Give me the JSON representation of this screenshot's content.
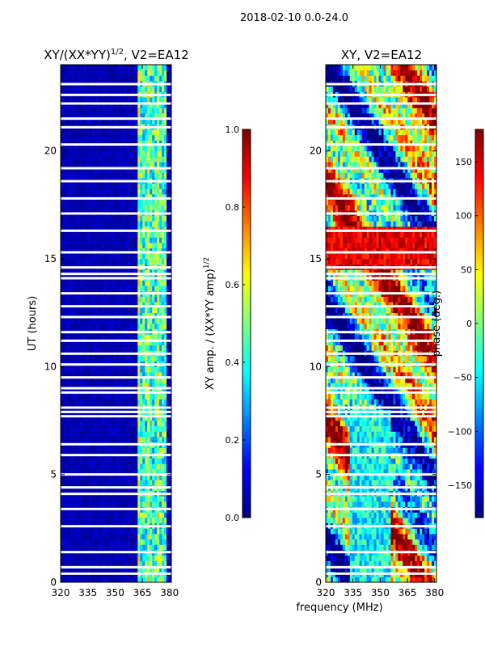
{
  "suptitle": "2018-02-10 0.0-24.0",
  "chart_data": [
    {
      "type": "heatmap",
      "title_main": "XY/(XX*YY)",
      "title_sup": "1/2",
      "title_rest": ", V2=EA12",
      "xlabel": "",
      "ylabel": "UT (hours)",
      "xlim": [
        320,
        381
      ],
      "ylim": [
        0,
        24
      ],
      "xticks": [
        320,
        335,
        350,
        365,
        380
      ],
      "yticks": [
        0,
        5,
        10,
        15,
        20
      ],
      "colorbar": {
        "label_main": "XY amp. / (XX*YY amp)",
        "label_sup": "1/2",
        "range": [
          0.0,
          1.0
        ],
        "ticks": [
          "0.0",
          "0.2",
          "0.4",
          "0.6",
          "0.8",
          "1.0"
        ],
        "tick_values": [
          0.0,
          0.2,
          0.4,
          0.6,
          0.8,
          1.0
        ],
        "colormap": "jet"
      },
      "gap_hours": [
        0.4,
        0.7,
        1.4,
        2.6,
        3.4,
        4.1,
        4.4,
        5.0,
        5.9,
        6.4,
        7.7,
        7.9,
        8.1,
        8.8,
        9.0,
        9.5,
        10.1,
        10.6,
        11.2,
        11.6,
        12.3,
        12.8,
        13.4,
        14.1,
        14.3,
        14.6,
        15.3,
        16.3,
        17.1,
        17.8,
        18.6,
        19.2,
        20.3,
        21.1,
        21.5,
        22.2,
        22.6,
        23.1
      ]
    },
    {
      "type": "heatmap",
      "title": "XY, V2=EA12",
      "xlabel": "frequency (MHz)",
      "ylabel": "",
      "xlim": [
        320,
        381
      ],
      "ylim": [
        0,
        24
      ],
      "xticks": [
        320,
        335,
        350,
        365,
        380
      ],
      "yticks": [
        0,
        5,
        10,
        15,
        20
      ],
      "colorbar": {
        "label": "phase (deg.)",
        "range": [
          -180,
          180
        ],
        "ticks": [
          "−150",
          "−100",
          "−50",
          "0",
          "50",
          "100",
          "150"
        ],
        "tick_values": [
          -150,
          -100,
          -50,
          0,
          50,
          100,
          150
        ],
        "colormap": "jet"
      },
      "gap_hours": [
        0.4,
        0.7,
        1.4,
        2.6,
        3.4,
        4.1,
        4.4,
        5.0,
        5.9,
        6.4,
        7.7,
        7.9,
        8.1,
        8.8,
        9.0,
        9.5,
        10.1,
        10.6,
        11.2,
        11.6,
        12.3,
        12.8,
        13.4,
        14.1,
        14.3,
        14.6,
        15.3,
        16.3,
        17.1,
        17.8,
        18.6,
        19.2,
        20.3,
        21.1,
        21.5,
        22.2,
        22.6,
        23.1
      ]
    }
  ]
}
